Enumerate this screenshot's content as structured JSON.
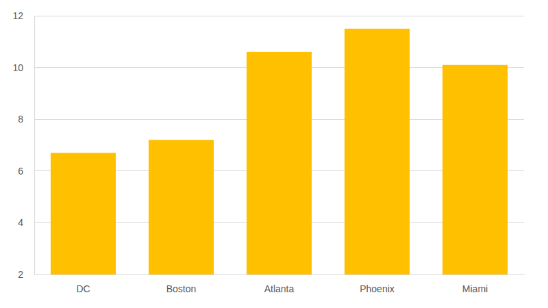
{
  "chart_data": {
    "type": "bar",
    "categories": [
      "DC",
      "Boston",
      "Atlanta",
      "Phoenix",
      "Miami"
    ],
    "values": [
      6.7,
      7.2,
      10.6,
      11.5,
      10.1
    ],
    "color": "#ffc000",
    "ylim": [
      2,
      12
    ],
    "yticks": [
      2,
      4,
      6,
      8,
      10,
      12
    ],
    "grid": true
  }
}
